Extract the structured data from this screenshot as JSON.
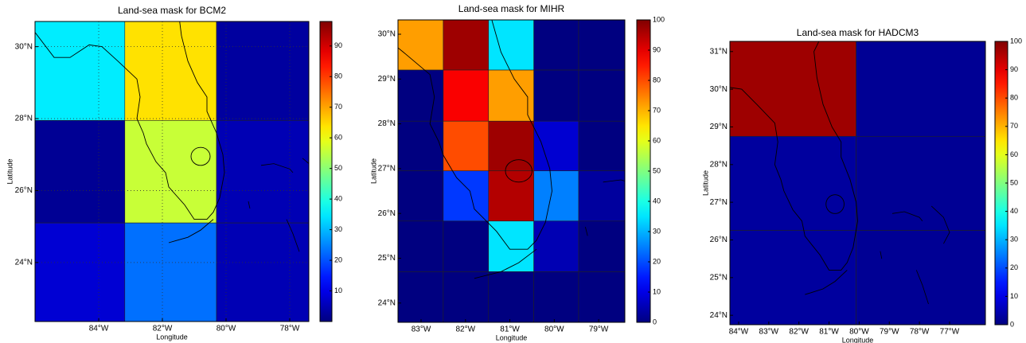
{
  "chart_data": [
    {
      "type": "heatmap",
      "title": "Land-sea mask for BCM2",
      "x_label": "Longitude",
      "y_label": "Latitude",
      "colormap": "jet",
      "grid": true,
      "xlim": [
        -86.0,
        -77.4
      ],
      "ylim": [
        22.36,
        30.7
      ],
      "xticks": [
        {
          "value": -84,
          "label": "84°W"
        },
        {
          "value": -82,
          "label": "82°W"
        },
        {
          "value": -80,
          "label": "80°W"
        },
        {
          "value": -78,
          "label": "78°W"
        }
      ],
      "yticks": [
        {
          "value": 24,
          "label": "24°N"
        },
        {
          "value": 26,
          "label": "26°N"
        },
        {
          "value": 28,
          "label": "28°N"
        },
        {
          "value": 30,
          "label": "30°N"
        }
      ],
      "x_edges": [
        -86.0,
        -83.18,
        -80.3,
        -77.4
      ],
      "y_edges": [
        30.7,
        27.95,
        25.1,
        22.36
      ],
      "values": [
        [
          35,
          64,
          3
        ],
        [
          2,
          56,
          5
        ],
        [
          8,
          23,
          5
        ]
      ],
      "clim": [
        0,
        98
      ],
      "cticks": [
        10,
        20,
        30,
        40,
        50,
        60,
        70,
        80,
        90
      ]
    },
    {
      "type": "heatmap",
      "title": "Land-sea mask for MIHR",
      "x_label": "Longitude",
      "y_label": "Latitude",
      "colormap": "jet",
      "grid": false,
      "xlim": [
        -83.52,
        -78.41
      ],
      "ylim": [
        23.57,
        30.32
      ],
      "xticks": [
        {
          "value": -83,
          "label": "83°W"
        },
        {
          "value": -82,
          "label": "82°W"
        },
        {
          "value": -81,
          "label": "81°W"
        },
        {
          "value": -80,
          "label": "80°W"
        },
        {
          "value": -79,
          "label": "79°W"
        }
      ],
      "yticks": [
        {
          "value": 24,
          "label": "24°N"
        },
        {
          "value": 25,
          "label": "25°N"
        },
        {
          "value": 26,
          "label": "26°N"
        },
        {
          "value": 27,
          "label": "27°N"
        },
        {
          "value": 28,
          "label": "28°N"
        },
        {
          "value": 29,
          "label": "29°N"
        },
        {
          "value": 30,
          "label": "30°N"
        }
      ],
      "x_edges": [
        -83.52,
        -82.5,
        -81.48,
        -80.46,
        -79.45,
        -78.41
      ],
      "y_edges": [
        30.32,
        29.2,
        28.06,
        26.95,
        25.83,
        24.7,
        23.57
      ],
      "values": [
        [
          72,
          97,
          35,
          0,
          0
        ],
        [
          0,
          88,
          72,
          0,
          0
        ],
        [
          0,
          80,
          97,
          8,
          0
        ],
        [
          0,
          18,
          95,
          25,
          3
        ],
        [
          0,
          0,
          35,
          5,
          0
        ],
        [
          0,
          0,
          0,
          0,
          0
        ]
      ],
      "clim": [
        0,
        100
      ],
      "cticks": [
        0,
        10,
        20,
        30,
        40,
        50,
        60,
        70,
        80,
        90,
        100
      ]
    },
    {
      "type": "heatmap",
      "title": "Land-sea mask for HADCM3",
      "x_label": "Longitude",
      "y_label": "Latitude",
      "colormap": "jet",
      "grid": false,
      "xlim": [
        -84.29,
        -75.81
      ],
      "ylim": [
        23.75,
        31.27
      ],
      "xticks": [
        {
          "value": -84,
          "label": "84°W"
        },
        {
          "value": -83,
          "label": "83°W"
        },
        {
          "value": -82,
          "label": "82°W"
        },
        {
          "value": -81,
          "label": "81°W"
        },
        {
          "value": -80,
          "label": "80°W"
        },
        {
          "value": -79,
          "label": "79°W"
        },
        {
          "value": -78,
          "label": "78°W"
        },
        {
          "value": -77,
          "label": "77°W"
        }
      ],
      "yticks": [
        {
          "value": 24,
          "label": "24°N"
        },
        {
          "value": 25,
          "label": "25°N"
        },
        {
          "value": 26,
          "label": "26°N"
        },
        {
          "value": 27,
          "label": "27°N"
        },
        {
          "value": 28,
          "label": "28°N"
        },
        {
          "value": 29,
          "label": "29°N"
        },
        {
          "value": 30,
          "label": "30°N"
        },
        {
          "value": 31,
          "label": "31°N"
        }
      ],
      "x_edges": [
        -84.29,
        -80.1,
        -75.81
      ],
      "y_edges": [
        31.27,
        28.75,
        26.25,
        23.75
      ],
      "values": [
        [
          97,
          2
        ],
        [
          3,
          2
        ],
        [
          3,
          2
        ]
      ],
      "clim": [
        0,
        100
      ],
      "cticks": [
        0,
        10,
        20,
        30,
        40,
        50,
        60,
        70,
        80,
        90,
        100
      ]
    }
  ]
}
